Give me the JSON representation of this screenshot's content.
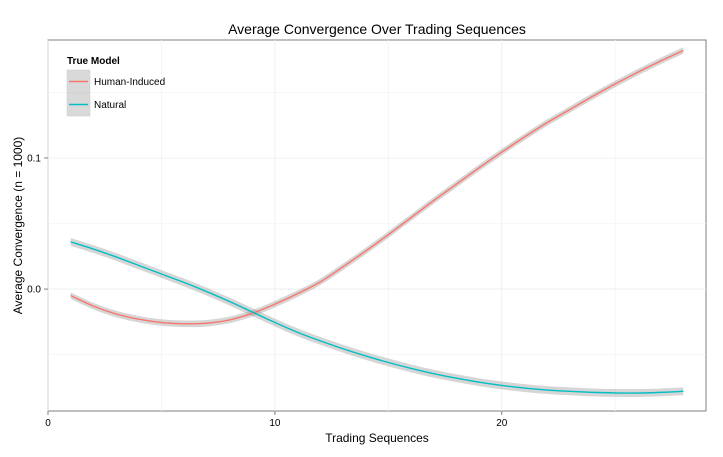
{
  "chart_data": {
    "type": "line",
    "title": "Average Convergence Over Trading Sequences",
    "xlabel": "Trading Sequences",
    "ylabel": "Average Convergence (n = 1000)",
    "xlim": [
      0,
      29
    ],
    "ylim": [
      -0.093,
      0.19
    ],
    "x_ticks": [
      0,
      10,
      20
    ],
    "x_tick_labels": [
      "0",
      "10",
      "20"
    ],
    "y_ticks": [
      0.0,
      0.1
    ],
    "y_tick_labels": [
      "0.0",
      "0.1"
    ],
    "grid": true,
    "legend": {
      "title": "True Model",
      "position": "top-left"
    },
    "series": [
      {
        "name": "Human-Induced",
        "color": "#F8766D",
        "x": [
          1,
          2,
          3,
          4,
          5,
          6,
          7,
          8,
          9,
          10,
          11,
          12,
          13,
          14,
          15,
          16,
          17,
          18,
          19,
          20,
          21,
          22,
          23,
          24,
          25,
          26,
          27,
          28
        ],
        "values": [
          -0.005,
          -0.013,
          -0.019,
          -0.023,
          -0.0255,
          -0.0265,
          -0.026,
          -0.0235,
          -0.0185,
          -0.0115,
          -0.0035,
          0.0055,
          0.017,
          0.029,
          0.0415,
          0.0545,
          0.0675,
          0.08,
          0.0925,
          0.1045,
          0.116,
          0.127,
          0.137,
          0.147,
          0.1565,
          0.1655,
          0.174,
          0.182
        ],
        "ci": 0.0025
      },
      {
        "name": "Natural",
        "color": "#00BFC4",
        "x": [
          1,
          2,
          3,
          4,
          5,
          6,
          7,
          8,
          9,
          10,
          11,
          12,
          13,
          14,
          15,
          16,
          17,
          18,
          19,
          20,
          21,
          22,
          23,
          24,
          25,
          26,
          27,
          28
        ],
        "values": [
          0.036,
          0.0305,
          0.0245,
          0.018,
          0.0115,
          0.005,
          -0.002,
          -0.0095,
          -0.0175,
          -0.0255,
          -0.033,
          -0.0395,
          -0.0455,
          -0.051,
          -0.056,
          -0.0605,
          -0.0645,
          -0.068,
          -0.071,
          -0.0735,
          -0.0755,
          -0.077,
          -0.078,
          -0.0788,
          -0.0792,
          -0.0793,
          -0.0788,
          -0.078
        ],
        "ci": 0.003
      }
    ]
  }
}
